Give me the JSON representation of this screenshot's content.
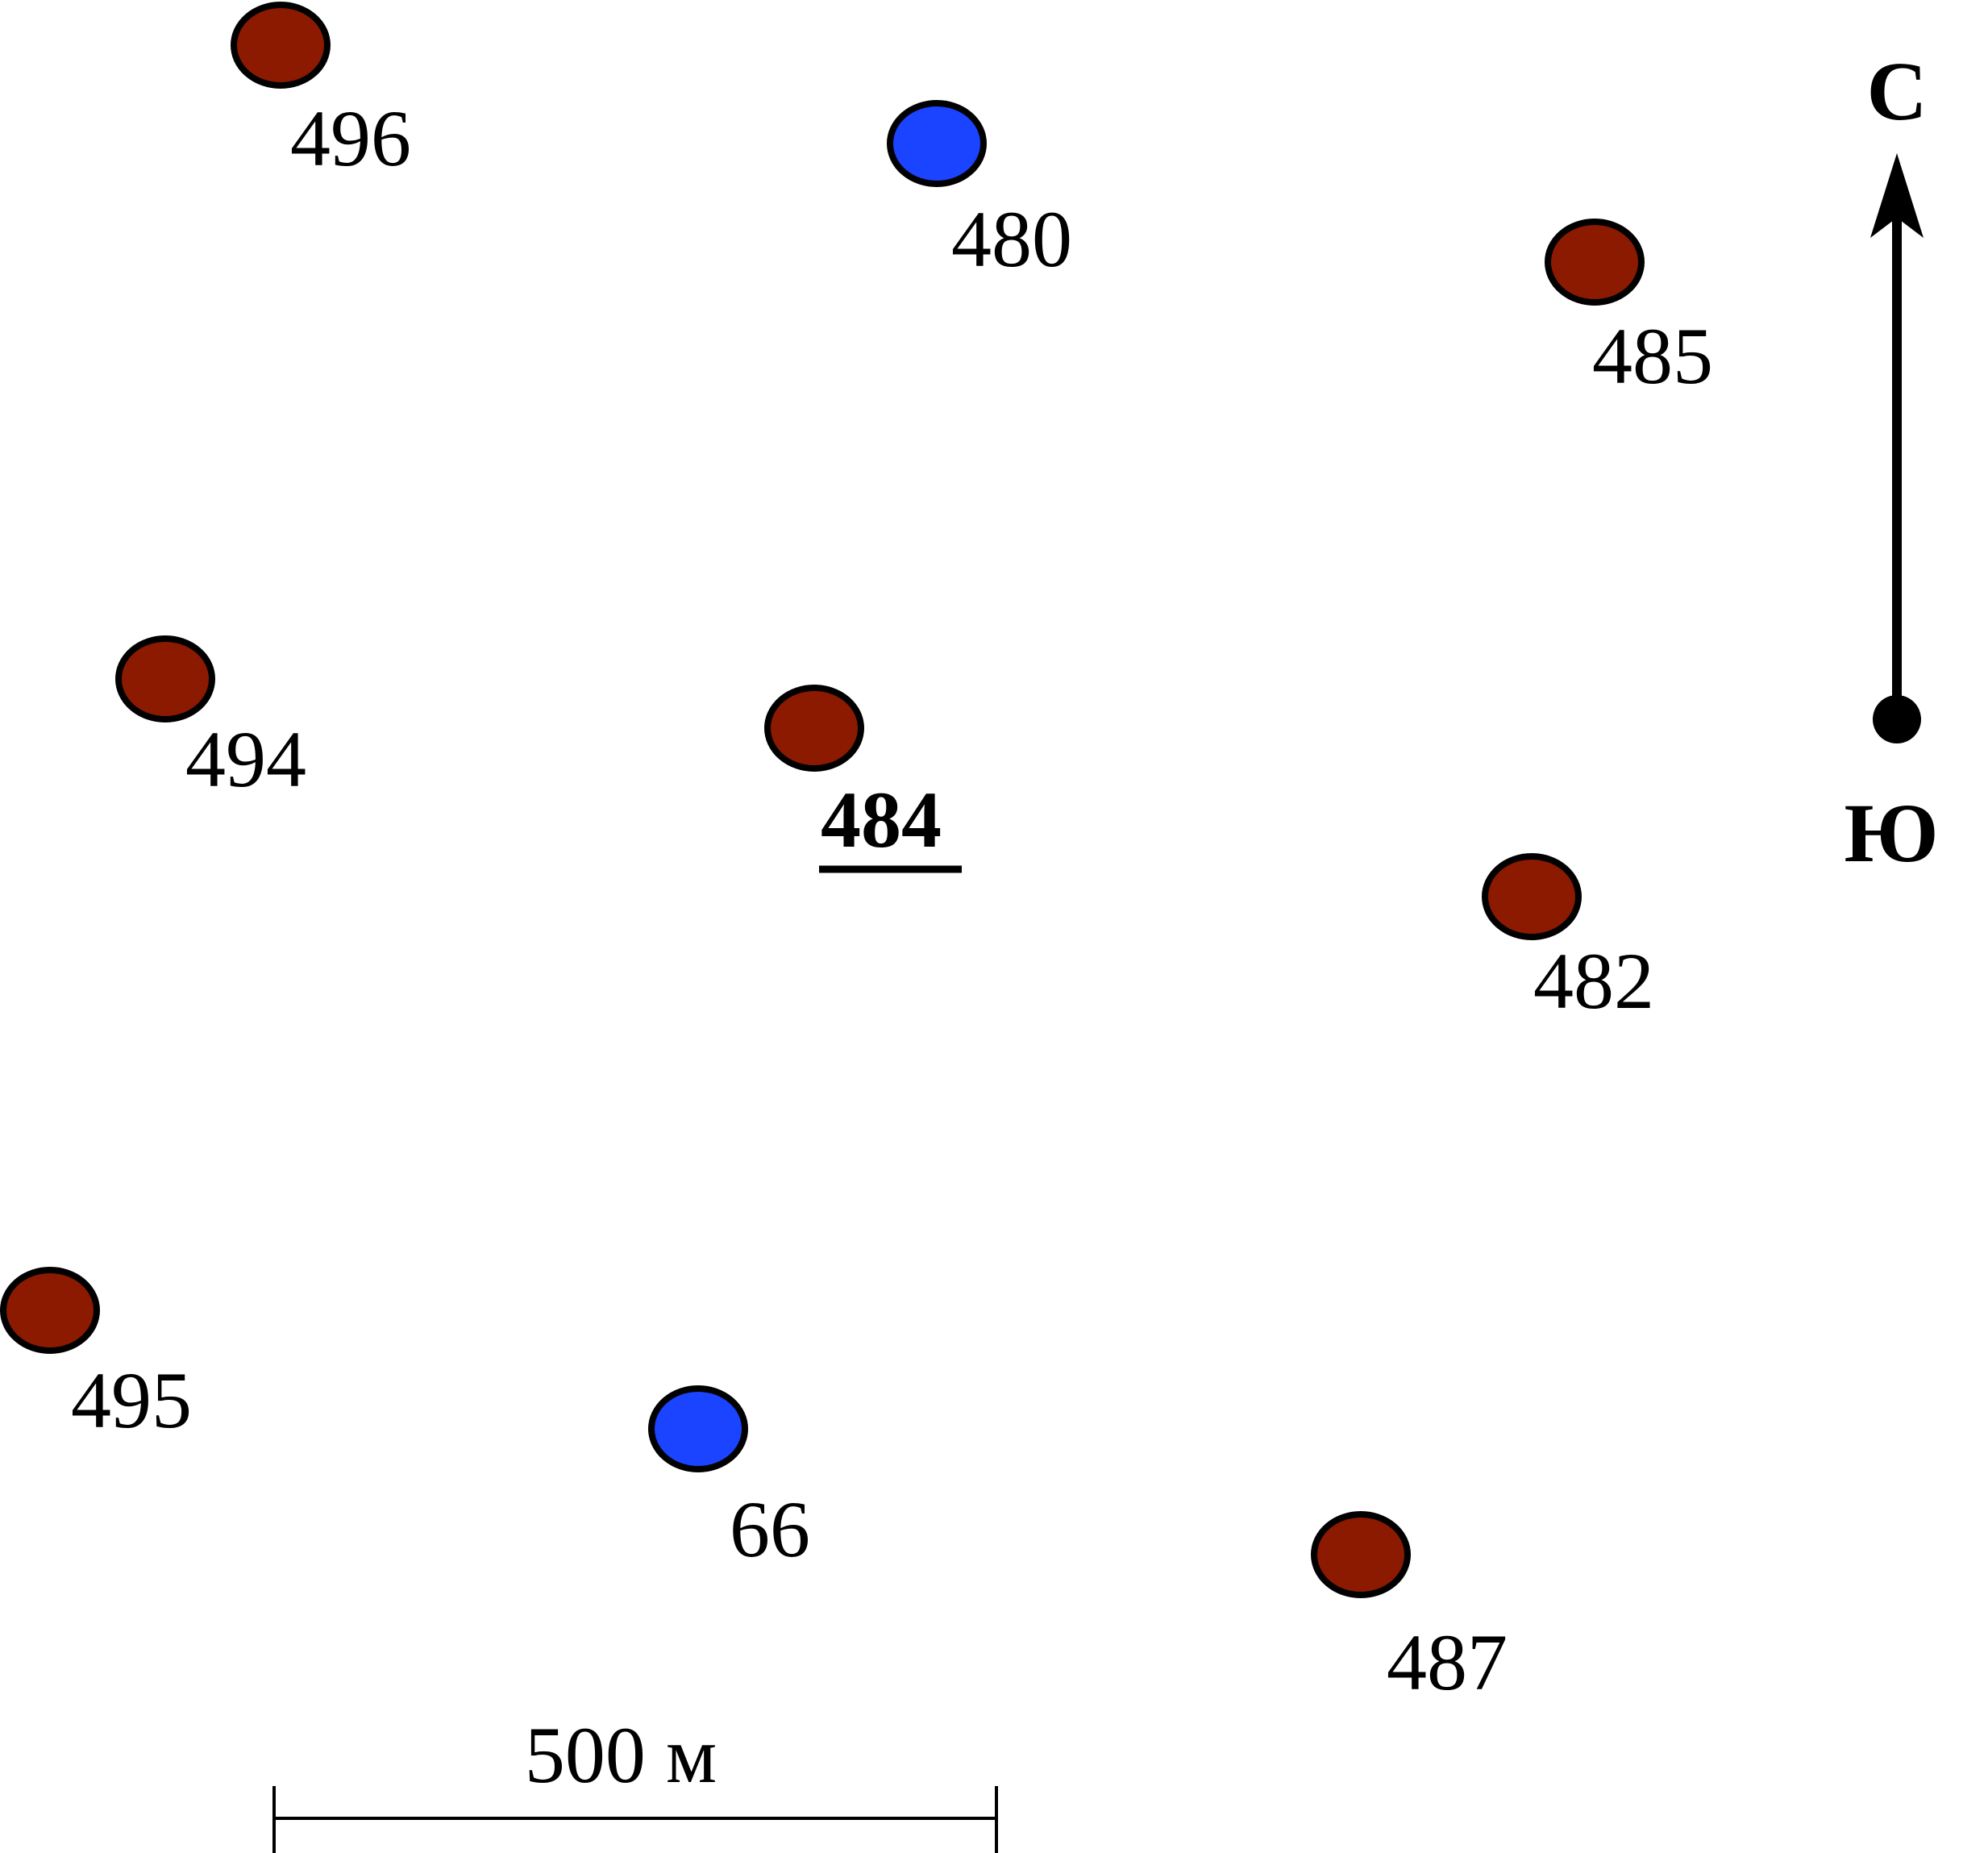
{
  "colors": {
    "production_well": "#8b1a00",
    "injection_well": "#1a44ff",
    "outline": "#000000",
    "background": "#ffffff"
  },
  "wells": [
    {
      "id": "496",
      "type": "production"
    },
    {
      "id": "480",
      "type": "injection"
    },
    {
      "id": "485",
      "type": "production"
    },
    {
      "id": "494",
      "type": "production"
    },
    {
      "id": "484",
      "type": "production",
      "highlighted": true
    },
    {
      "id": "482",
      "type": "production"
    },
    {
      "id": "495",
      "type": "production"
    },
    {
      "id": "66",
      "type": "injection"
    },
    {
      "id": "487",
      "type": "production"
    }
  ],
  "compass": {
    "north_label": "С",
    "south_label": "Ю"
  },
  "scale_bar": {
    "label": "500 м"
  }
}
